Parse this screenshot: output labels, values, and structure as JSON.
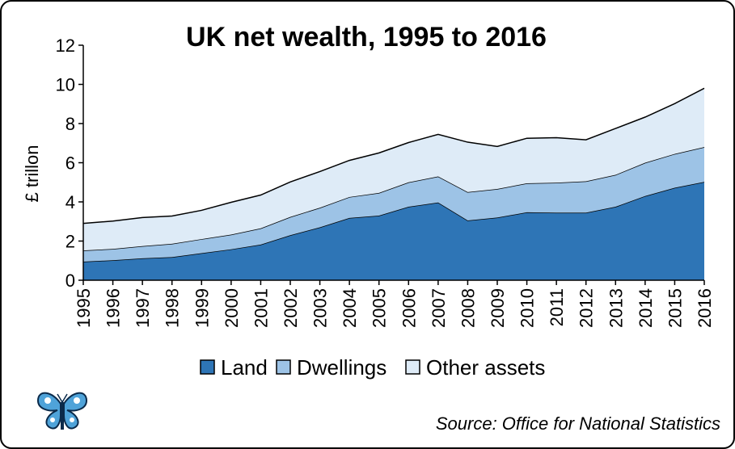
{
  "colors": {
    "land": "#2E75B6",
    "dwellings": "#9DC3E6",
    "other_assets": "#DEEBF7",
    "outline": "#000000"
  },
  "logo": {
    "icon": "butterfly-logo"
  },
  "source": "Source: Office for National Statistics",
  "chart_data": {
    "type": "area",
    "stacked": true,
    "title": "UK net wealth, 1995 to 2016",
    "ylabel": "£ trillon",
    "xlabel": "",
    "ylim": [
      0,
      12
    ],
    "yticks": [
      0,
      2,
      4,
      6,
      8,
      10,
      12
    ],
    "grid": false,
    "legend_position": "bottom",
    "categories": [
      "1995",
      "1996",
      "1997",
      "1998",
      "1999",
      "2000",
      "2001",
      "2002",
      "2003",
      "2004",
      "2005",
      "2006",
      "2007",
      "2008",
      "2009",
      "2010",
      "2011",
      "2012",
      "2013",
      "2014",
      "2015",
      "2016"
    ],
    "series": [
      {
        "name": "Land",
        "values": [
          0.95,
          1.02,
          1.12,
          1.18,
          1.38,
          1.58,
          1.82,
          2.3,
          2.7,
          3.18,
          3.3,
          3.75,
          3.97,
          3.05,
          3.2,
          3.47,
          3.45,
          3.45,
          3.75,
          4.3,
          4.72,
          5.02
        ]
      },
      {
        "name": "Dwellings",
        "values": [
          0.57,
          0.58,
          0.62,
          0.68,
          0.72,
          0.75,
          0.83,
          0.93,
          1.0,
          1.07,
          1.16,
          1.25,
          1.33,
          1.45,
          1.46,
          1.48,
          1.53,
          1.6,
          1.63,
          1.7,
          1.73,
          1.78
        ]
      },
      {
        "name": "Other assets",
        "values": [
          1.38,
          1.42,
          1.46,
          1.42,
          1.47,
          1.65,
          1.7,
          1.79,
          1.85,
          1.87,
          2.04,
          2.03,
          2.15,
          2.55,
          2.17,
          2.3,
          2.3,
          2.12,
          2.37,
          2.33,
          2.57,
          3.0
        ]
      }
    ]
  }
}
